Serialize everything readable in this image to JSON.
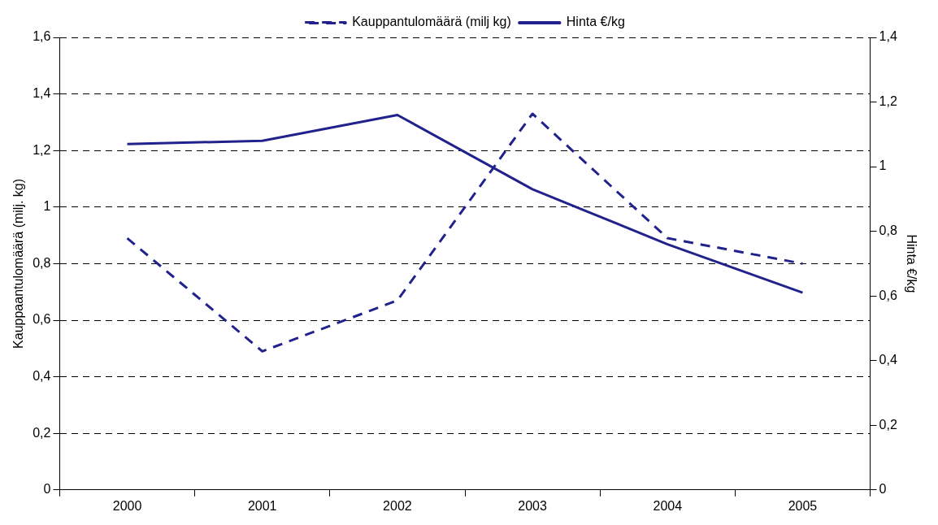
{
  "chart_data": {
    "type": "line",
    "categories": [
      "2000",
      "2001",
      "2002",
      "2003",
      "2004",
      "2005"
    ],
    "series": [
      {
        "name": "Kauppantulomäärä (milj kg)",
        "color": "#22228c",
        "line_style": "dashed",
        "values": [
          0.89,
          0.49,
          0.67,
          1.33,
          0.89,
          0.8
        ]
      },
      {
        "name": "Hinta €/kg",
        "color": "#22228c",
        "line_style": "solid",
        "axis": "y2",
        "values": [
          1.07,
          1.08,
          1.16,
          0.93,
          0.76,
          0.61
        ]
      }
    ],
    "ylabel": "Kauppaantulomäärä (milj. kg)",
    "y2label": "Hinta €/kg",
    "ylim": [
      0,
      1.6
    ],
    "yticks": [
      0,
      {
        "value": 0.2,
        "label": "0,2"
      },
      {
        "value": 0.4,
        "label": "0,4"
      },
      {
        "value": 0.6,
        "label": "0,6"
      },
      {
        "value": 0.8,
        "label": "0,8"
      },
      1,
      {
        "value": 1.2,
        "label": "1,2"
      },
      {
        "value": 1.4,
        "label": "1,4"
      },
      {
        "value": 1.6,
        "label": "1,6"
      }
    ],
    "y2lim": [
      0,
      1.4
    ],
    "y2ticks": [
      0,
      {
        "value": 0.2,
        "label": "0,2"
      },
      {
        "value": 0.4,
        "label": "0,4"
      },
      {
        "value": 0.6,
        "label": "0,6"
      },
      {
        "value": 0.8,
        "label": "0,8"
      },
      1,
      {
        "value": 1.2,
        "label": "1,2"
      },
      {
        "value": 1.4,
        "label": "1,4"
      }
    ],
    "grid": "y",
    "legend": "top",
    "marker": "none"
  }
}
